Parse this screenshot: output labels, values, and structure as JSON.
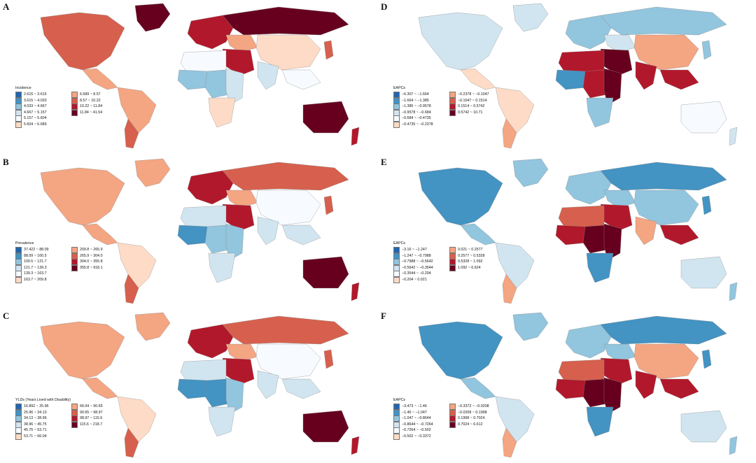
{
  "palette": {
    "blue6": [
      "#2166ac",
      "#4393c3",
      "#92c5de",
      "#d1e5f0",
      "#f7fbff"
    ],
    "red6": [
      "#fddbc7",
      "#f4a582",
      "#d6604d",
      "#b2182b",
      "#67001f"
    ]
  },
  "panels": [
    {
      "letter": "A",
      "legend": {
        "title": "Incidence",
        "items": [
          "2.615 ~ 3.615",
          "3.615 ~ 4.033",
          "4.033 ~ 4.667",
          "4.667 ~ 5.157",
          "5.157 ~ 5.604",
          "5.604 ~ 6.689",
          "6.689 ~ 8.57",
          "8.57 ~ 10.22",
          "10.22 ~ 11.84",
          "11.84 ~ 41.54"
        ]
      },
      "regions": {
        "north_america": 7,
        "greenland": 9,
        "central_america": 6,
        "south_america": 6,
        "southern_cone": 7,
        "europe": 8,
        "russia": 9,
        "central_asia": 6,
        "china": 5,
        "india": 3,
        "middle_east": 8,
        "north_africa": 4,
        "west_africa": 2,
        "central_africa": 2,
        "east_africa": 3,
        "southern_africa": 5,
        "southeast_asia": 4,
        "japan": 7,
        "australia": 9,
        "new_zealand": 8
      }
    },
    {
      "letter": "B",
      "legend": {
        "title": "Prevalence",
        "items": [
          "37.422 ~ 88.09",
          "88.09 ~ 100.5",
          "100.5 ~ 121.7",
          "121.7 ~ 139.3",
          "139.3 ~ 163.7",
          "163.7 ~ 209.8",
          "209.8 ~ 265.9",
          "265.9 ~ 304.0",
          "304.0 ~ 355.8",
          "355.8 ~ 918.1"
        ]
      },
      "regions": {
        "north_america": 6,
        "greenland": 6,
        "central_america": 6,
        "south_america": 5,
        "southern_cone": 7,
        "europe": 8,
        "russia": 7,
        "central_asia": 6,
        "china": 4,
        "india": 3,
        "middle_east": 8,
        "north_africa": 3,
        "west_africa": 1,
        "central_africa": 2,
        "east_africa": 2,
        "southern_africa": 3,
        "southeast_asia": 3,
        "japan": 7,
        "australia": 9,
        "new_zealand": 8
      }
    },
    {
      "letter": "C",
      "legend": {
        "title": "YLDs (Years Lived with Disability)",
        "items": [
          "16.892 ~ 25.96",
          "25.96 ~ 34.13",
          "34.13 ~ 38.96",
          "38.96 ~ 45.75",
          "45.75 ~ 53.71",
          "53.71 ~ 66.04",
          "66.04 ~ 90.65",
          "90.65 ~ 98.97",
          "98.97 ~ 115.6",
          "115.6 ~ 218.7"
        ]
      },
      "regions": {
        "north_america": 6,
        "greenland": 6,
        "central_america": 6,
        "south_america": 5,
        "southern_cone": 7,
        "europe": 8,
        "russia": 7,
        "central_asia": 6,
        "china": 4,
        "india": 3,
        "middle_east": 8,
        "north_africa": 3,
        "west_africa": 1,
        "central_africa": 1,
        "east_africa": 2,
        "southern_africa": 3,
        "southeast_asia": 3,
        "japan": 7,
        "australia": 9,
        "new_zealand": 8
      }
    },
    {
      "letter": "D",
      "legend": {
        "title": "EAPCs",
        "items": [
          "−6.307 ~ −1.664",
          "−1.664 ~ −1.385",
          "−1.385 ~ −0.9578",
          "−0.9578 ~ −0.684",
          "−0.684 ~ −0.4735",
          "−0.4735 ~ −0.2378",
          "−0.2378 ~ −0.1047",
          "−0.1047 ~ 0.1514",
          "0.1514 ~ 0.5742",
          "0.5742 ~ 10.71"
        ]
      },
      "regions": {
        "north_america": 3,
        "greenland": 3,
        "central_america": 5,
        "south_america": 5,
        "southern_cone": 6,
        "europe": 2,
        "russia": 2,
        "central_asia": 3,
        "china": 6,
        "india": 8,
        "middle_east": 9,
        "north_africa": 8,
        "west_africa": 1,
        "central_africa": 8,
        "east_africa": 9,
        "southern_africa": 2,
        "southeast_asia": 8,
        "japan": 2,
        "australia": 4,
        "new_zealand": 3
      }
    },
    {
      "letter": "E",
      "legend": {
        "title": "EAPCs",
        "items": [
          "−3.16 ~ −1.247",
          "−1.247 ~ −0.7988",
          "−0.7988 ~ −0.5642",
          "−0.5642 ~ −0.3544",
          "−0.3544 ~ −0.204",
          "−0.204 ~ 0.021",
          "0.021 ~ 0.2577",
          "0.2577 ~ 0.5328",
          "0.5328 ~ 1.092",
          "1.092 ~ 6.624"
        ]
      },
      "regions": {
        "north_america": 1,
        "greenland": 2,
        "central_america": 2,
        "south_america": 3,
        "southern_cone": 6,
        "europe": 2,
        "russia": 1,
        "central_asia": 2,
        "china": 2,
        "india": 6,
        "middle_east": 8,
        "north_africa": 7,
        "west_africa": 8,
        "central_africa": 9,
        "east_africa": 9,
        "southern_africa": 1,
        "southeast_asia": 8,
        "japan": 1,
        "australia": 3,
        "new_zealand": 2
      }
    },
    {
      "letter": "F",
      "legend": {
        "title": "EAPCs",
        "items": [
          "−3.473 ~ −1.46",
          "−1.46 ~ −1.047",
          "−1.047 ~ −0.8644",
          "−0.8644 ~ −0.7264",
          "−0.7264 ~ −0.502",
          "−0.502 ~ −0.3372",
          "−0.3372 ~ −0.0208",
          "−0.0208 ~ 0.1998",
          "0.1998 ~ 0.7024",
          "0.7024 ~ 6.612"
        ]
      },
      "regions": {
        "north_america": 1,
        "greenland": 2,
        "central_america": 2,
        "south_america": 3,
        "southern_cone": 6,
        "europe": 2,
        "russia": 1,
        "central_asia": 2,
        "china": 6,
        "india": 8,
        "middle_east": 8,
        "north_africa": 7,
        "west_africa": 8,
        "central_africa": 9,
        "east_africa": 9,
        "southern_africa": 1,
        "southeast_asia": 8,
        "japan": 1,
        "australia": 3,
        "new_zealand": 2
      }
    }
  ]
}
